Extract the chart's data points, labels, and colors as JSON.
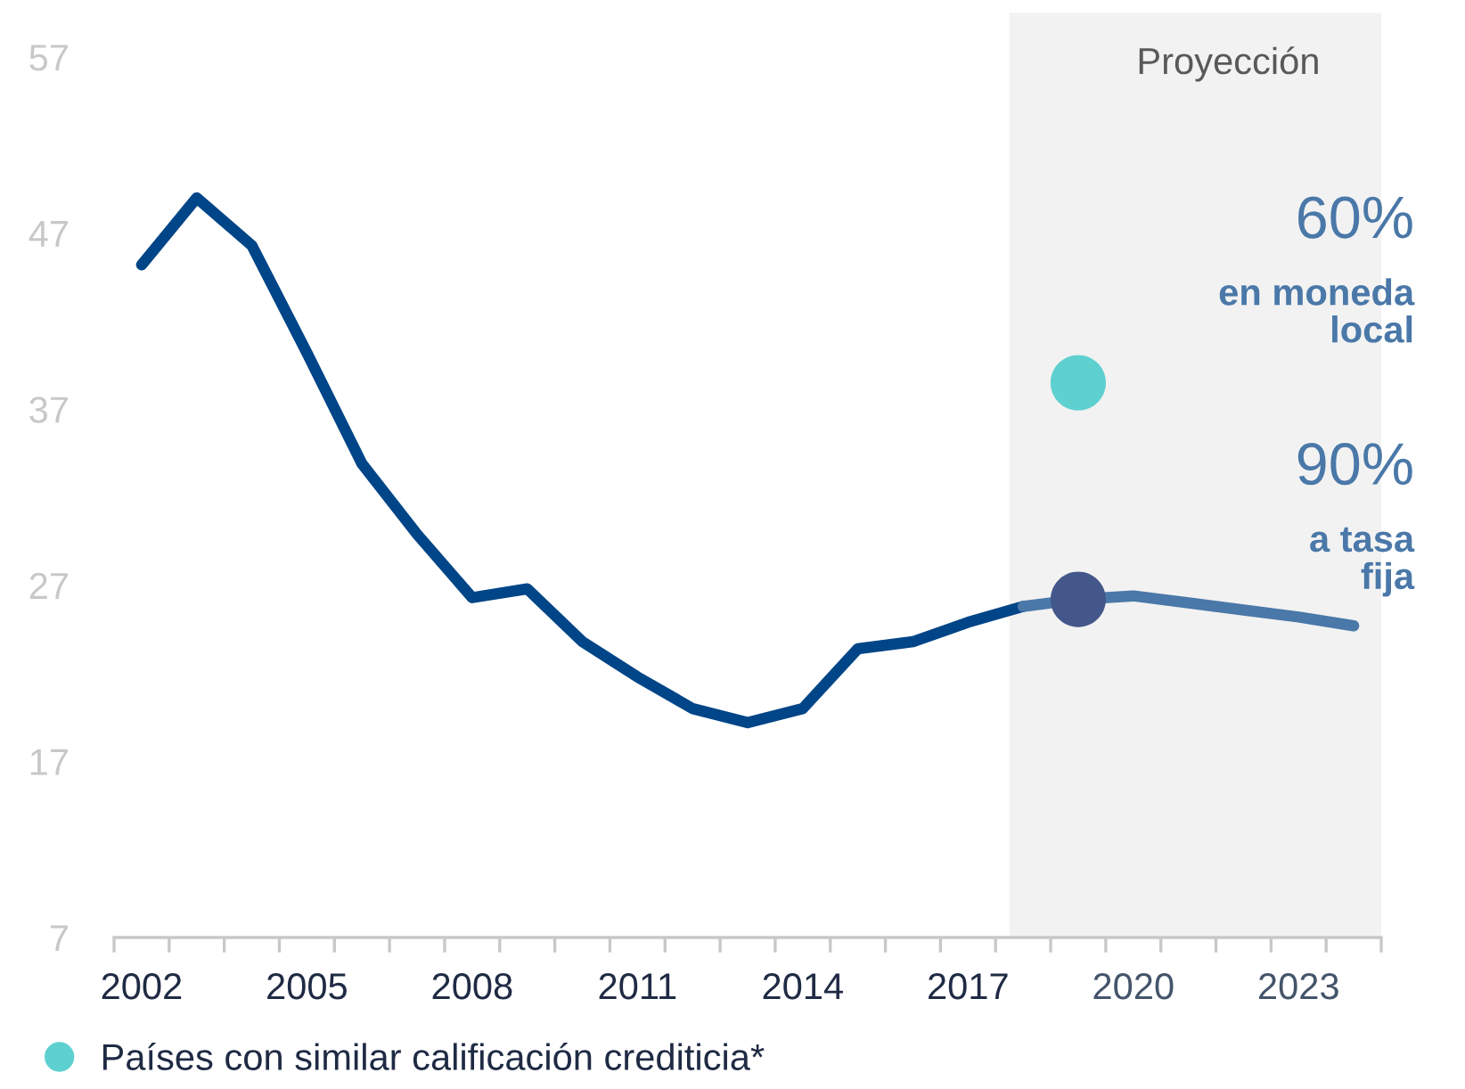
{
  "chart_data": {
    "type": "line",
    "xlim": [
      2001.5,
      2024.5
    ],
    "ylim": [
      7,
      57
    ],
    "xticks": [
      {
        "value": 2002,
        "label": "2002"
      },
      {
        "value": 2005,
        "label": "2005"
      },
      {
        "value": 2008,
        "label": "2008"
      },
      {
        "value": 2011,
        "label": "2011"
      },
      {
        "value": 2014,
        "label": "2014"
      },
      {
        "value": 2017,
        "label": "2017"
      },
      {
        "value": 2020,
        "label": "2020"
      },
      {
        "value": 2023,
        "label": "2023"
      },
      {
        "value": 2001.5,
        "label": null
      },
      {
        "value": 2002.5,
        "label": null
      },
      {
        "value": 2003.5,
        "label": null
      },
      {
        "value": 2004.5,
        "label": null
      },
      {
        "value": 2005.5,
        "label": null
      },
      {
        "value": 2006.5,
        "label": null
      },
      {
        "value": 2007.5,
        "label": null
      },
      {
        "value": 2008.5,
        "label": null
      },
      {
        "value": 2009.5,
        "label": null
      },
      {
        "value": 2010.5,
        "label": null
      },
      {
        "value": 2011.5,
        "label": null
      },
      {
        "value": 2012.5,
        "label": null
      },
      {
        "value": 2013.5,
        "label": null
      },
      {
        "value": 2014.5,
        "label": null
      },
      {
        "value": 2015.5,
        "label": null
      },
      {
        "value": 2016.5,
        "label": null
      },
      {
        "value": 2017.5,
        "label": null
      },
      {
        "value": 2018.5,
        "label": null
      },
      {
        "value": 2019.5,
        "label": null
      },
      {
        "value": 2020.5,
        "label": null
      },
      {
        "value": 2021.5,
        "label": null
      },
      {
        "value": 2022.5,
        "label": null
      },
      {
        "value": 2023.5,
        "label": null
      },
      {
        "value": 2024.5,
        "label": null
      }
    ],
    "yticks": [
      7,
      17,
      27,
      37,
      47,
      57
    ],
    "grid": false,
    "legend": "bottom left",
    "marker": "none",
    "line_style": "solid",
    "series": [
      {
        "color": "#004587",
        "x": [
          2002,
          2003,
          2004,
          2005,
          2006,
          2007,
          2008,
          2009,
          2010,
          2011,
          2012,
          2013,
          2014,
          2015,
          2016,
          2017,
          2018
        ],
        "values": [
          45.2,
          49.0,
          46.3,
          40.2,
          33.9,
          29.9,
          26.3,
          26.8,
          23.8,
          21.8,
          20.0,
          19.2,
          20.0,
          23.4,
          23.8,
          24.9,
          25.8
        ]
      },
      {
        "color": "#4a78a8",
        "x": [
          2018,
          2019,
          2020,
          2021,
          2022,
          2023,
          2024
        ],
        "values": [
          25.8,
          26.2,
          26.4,
          26.0,
          25.6,
          25.2,
          24.7
        ]
      },
      {
        "type": "scatter",
        "marker": "circle",
        "color": "#5fd0d0",
        "name": "Países con similar calificación crediticia*",
        "x": [
          2019
        ],
        "values": [
          38.5
        ]
      },
      {
        "type": "scatter",
        "marker": "circle",
        "color": "#44578a",
        "x": [
          2019
        ],
        "values": [
          26.2
        ]
      }
    ],
    "bands": [
      {
        "axis": "x",
        "from": 2017.75,
        "to": 2024.5,
        "label": "Proyección",
        "color": "#f2f2f2"
      }
    ],
    "annotations": [
      "60%",
      "en moneda\nlocal",
      "90%",
      "a tasa\nfija"
    ]
  }
}
